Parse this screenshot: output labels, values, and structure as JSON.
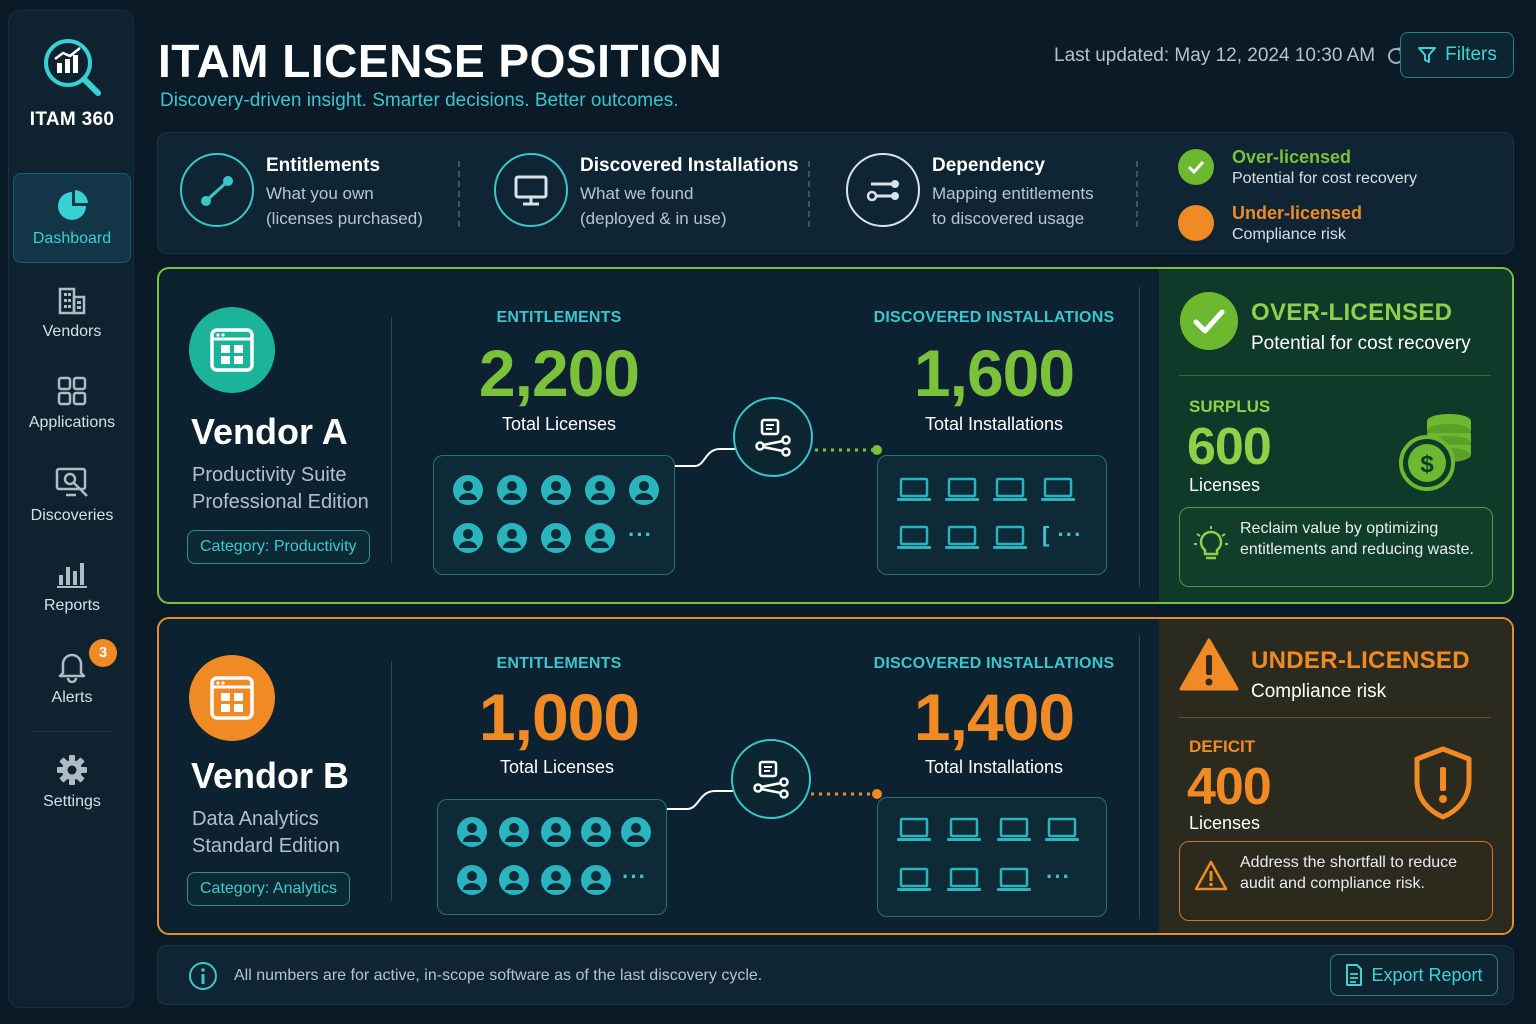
{
  "app": {
    "name": "ITAM 360"
  },
  "sidebar": {
    "items": [
      {
        "label": "Dashboard",
        "icon": "pie-chart-icon",
        "active": true
      },
      {
        "label": "Vendors",
        "icon": "building-icon"
      },
      {
        "label": "Applications",
        "icon": "grid-icon"
      },
      {
        "label": "Discoveries",
        "icon": "monitor-search-icon"
      },
      {
        "label": "Reports",
        "icon": "bar-chart-icon"
      },
      {
        "label": "Alerts",
        "icon": "bell-icon",
        "badge": "3"
      },
      {
        "label": "Settings",
        "icon": "gear-icon"
      }
    ]
  },
  "header": {
    "title": "ITAM LICENSE POSITION",
    "subtitle": "Discovery-driven insight. Smarter decisions. Better outcomes.",
    "last_updated": "Last updated: May 12, 2024 10:30 AM",
    "filters_label": "Filters"
  },
  "legend": {
    "items": [
      {
        "title": "Entitlements",
        "line1": "What you own",
        "line2": "(licenses purchased)",
        "icon": "link-icon"
      },
      {
        "title": "Discovered Installations",
        "line1": "What we found",
        "line2": "(deployed & in use)",
        "icon": "monitor-icon"
      },
      {
        "title": "Dependency",
        "line1": "Mapping entitlements",
        "line2": "to discovered usage",
        "icon": "mapping-icon"
      }
    ],
    "status": [
      {
        "title": "Over-licensed",
        "desc": "Potential for cost recovery",
        "color": "#7cc13a"
      },
      {
        "title": "Under-licensed",
        "desc": "Compliance risk",
        "color": "#f08a24"
      }
    ]
  },
  "colors": {
    "accent": "#3ac6cc",
    "over": "#7cc13a",
    "under": "#f08a24"
  },
  "vendors": [
    {
      "name": "Vendor A",
      "product_line1": "Productivity Suite",
      "product_line2": "Professional Edition",
      "category": "Category: Productivity",
      "entitlements_label": "ENTITLEMENTS",
      "entitlements_value": "2,200",
      "entitlements_unit": "Total Licenses",
      "installations_label": "DISCOVERED INSTALLATIONS",
      "installations_value": "1,600",
      "installations_unit": "Total Installations",
      "status_title": "OVER-LICENSED",
      "status_sub": "Potential for cost recovery",
      "metric_label": "SURPLUS",
      "metric_value": "600",
      "metric_unit": "Licenses",
      "note": "Reclaim value by optimizing entitlements and reducing waste."
    },
    {
      "name": "Vendor B",
      "product_line1": "Data Analytics",
      "product_line2": "Standard Edition",
      "category": "Category: Analytics",
      "entitlements_label": "ENTITLEMENTS",
      "entitlements_value": "1,000",
      "entitlements_unit": "Total Licenses",
      "installations_label": "DISCOVERED INSTALLATIONS",
      "installations_value": "1,400",
      "installations_unit": "Total Installations",
      "status_title": "UNDER-LICENSED",
      "status_sub": "Compliance risk",
      "metric_label": "DEFICIT",
      "metric_value": "400",
      "metric_unit": "Licenses",
      "note": "Address the shortfall to reduce audit and compliance risk."
    }
  ],
  "footer": {
    "note": "All numbers are for active, in-scope software as of the last discovery cycle.",
    "export_label": "Export Report"
  }
}
